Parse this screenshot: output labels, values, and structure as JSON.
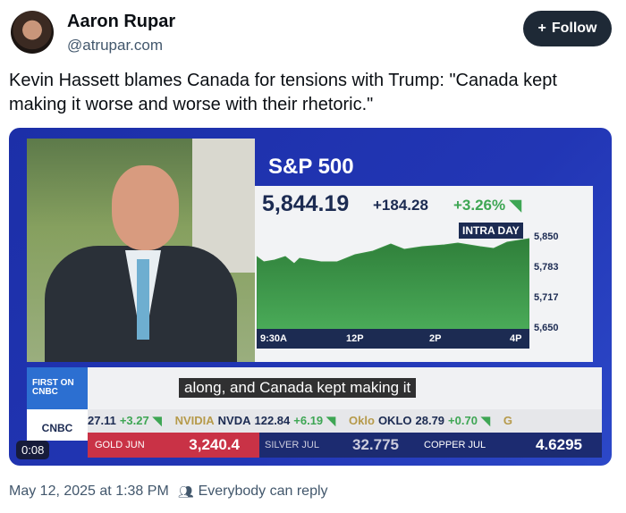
{
  "author": {
    "name": "Aaron Rupar",
    "handle": "@atrupar.com"
  },
  "follow_label": "Follow",
  "post_text": "Kevin Hassett blames Canada for tensions with Trump: \"Canada kept making it worse and worse with their rhetoric.\"",
  "video": {
    "index_name": "S&P 500",
    "price": "5,844.19",
    "change": "+184.28",
    "percent": "+3.26%",
    "chart_label": "INTRA DAY",
    "x_ticks": [
      "9:30A",
      "12P",
      "2P",
      "4P"
    ],
    "y_ticks": [
      "5,850",
      "5,783",
      "5,717",
      "5,650"
    ],
    "first_label": "FIRST ON CNBC",
    "logo": "CNBC",
    "ticker": [
      {
        "a": "27.11",
        "b": "+3.27"
      },
      {
        "name": "NVIDIA",
        "sym": "NVDA",
        "price": "122.84",
        "chg": "+6.19"
      },
      {
        "name": "Oklo",
        "sym": "OKLO",
        "price": "28.79",
        "chg": "+0.70"
      },
      {
        "name": "G"
      }
    ],
    "commodities": {
      "gold": {
        "label": "GOLD",
        "month": "JUN",
        "value": "3,240.4"
      },
      "silver": {
        "label": "SILVER",
        "month": "JUL",
        "value": "32.775"
      },
      "copper": {
        "label": "COPPER",
        "month": "JUL",
        "value": "4.6295"
      }
    },
    "timestamp": "0:08",
    "caption": "along, and Canada kept making it"
  },
  "footer": {
    "date": "May 12, 2025 at 1:38 PM",
    "reply": "Everybody can reply"
  }
}
